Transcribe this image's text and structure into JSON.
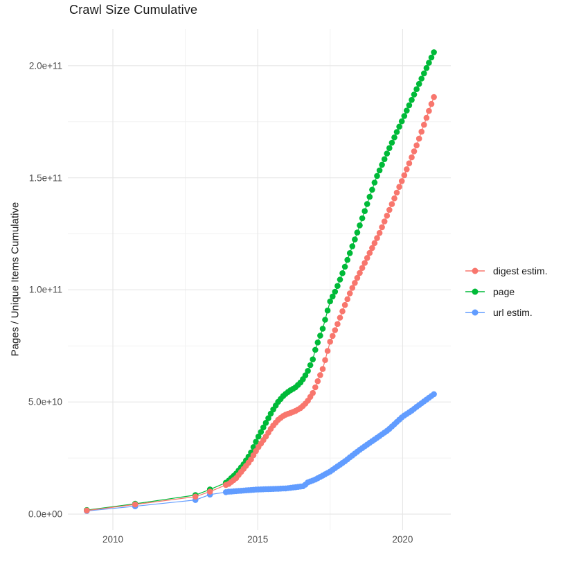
{
  "title": "Crawl Size Cumulative",
  "y_axis": {
    "label": "Pages / Unique Items Cumulative",
    "tick_labels": [
      "0.0e+00",
      "5.0e+10",
      "1.0e+11",
      "1.5e+11",
      "2.0e+11"
    ],
    "tick_values": [
      0,
      50000000000.0,
      100000000000.0,
      150000000000.0,
      200000000000.0
    ]
  },
  "x_axis": {
    "tick_labels": [
      "2010",
      "2015",
      "2020"
    ],
    "tick_values": [
      2010,
      2015,
      2020
    ]
  },
  "legend": {
    "items": [
      {
        "label": "digest estim.",
        "color": "#F8766D"
      },
      {
        "label": "page",
        "color": "#00BA38"
      },
      {
        "label": "url estim.",
        "color": "#619CFF"
      }
    ]
  },
  "colors": {
    "grid_major": "#e7e7e7",
    "grid_minor": "#f2f2f2",
    "title_text": "#1a1a1a",
    "tick_text": "#4d4d4d",
    "background": "#ffffff"
  },
  "chart_data": {
    "type": "scatter",
    "title": "Crawl Size Cumulative",
    "xlabel": "",
    "ylabel": "Pages / Unique Items Cumulative",
    "xlim": [
      2008.45,
      2021.7
    ],
    "ylim": [
      0,
      216000000000.0
    ],
    "x_major_ticks": [
      2010,
      2015,
      2020
    ],
    "x_minor_ticks": [
      2012.5,
      2017.5
    ],
    "y_major_ticks": [
      0,
      50000000000.0,
      100000000000.0,
      150000000000.0,
      200000000000.0
    ],
    "y_minor_ticks": [
      25000000000.0,
      75000000000.0,
      125000000000.0,
      175000000000.0
    ],
    "grid": true,
    "legend_position": "right",
    "marker_style": "point-with-line",
    "dense_from_year": 2014.0,
    "dense_to_year": 2021.08,
    "dense_step_years": 0.0853,
    "draw_order": [
      "url estim.",
      "page",
      "digest estim."
    ],
    "series": [
      {
        "name": "digest estim.",
        "color": "#F8766D",
        "waypoints": [
          [
            2009.1,
            1600000000.0
          ],
          [
            2010.77,
            4300000000.0
          ],
          [
            2012.85,
            7800000000.0
          ],
          [
            2013.35,
            10000000000.0
          ],
          [
            2013.9,
            13000000000.0
          ],
          [
            2014.0,
            13500000000.0
          ],
          [
            2014.25,
            16000000000.0
          ],
          [
            2014.5,
            20000000000.0
          ],
          [
            2014.75,
            24000000000.0
          ],
          [
            2015.0,
            29500000000.0
          ],
          [
            2015.25,
            34000000000.0
          ],
          [
            2015.5,
            39000000000.0
          ],
          [
            2015.7,
            42000000000.0
          ],
          [
            2015.9,
            44000000000.0
          ],
          [
            2016.1,
            45000000000.0
          ],
          [
            2016.3,
            46000000000.0
          ],
          [
            2016.5,
            47500000000.0
          ],
          [
            2016.7,
            50000000000.0
          ],
          [
            2016.9,
            54000000000.0
          ],
          [
            2017.0,
            57000000000.0
          ],
          [
            2017.25,
            65000000000.0
          ],
          [
            2017.5,
            77000000000.0
          ],
          [
            2017.7,
            83000000000.0
          ],
          [
            2018.0,
            93000000000.0
          ],
          [
            2018.23,
            100000000000.0
          ],
          [
            2019.19,
            125000000000.0
          ],
          [
            2020.02,
            150000000000.0
          ],
          [
            2020.5,
            165000000000.0
          ],
          [
            2021.08,
            186000000000.0
          ]
        ]
      },
      {
        "name": "page",
        "color": "#00BA38",
        "waypoints": [
          [
            2009.1,
            1800000000.0
          ],
          [
            2010.77,
            4600000000.0
          ],
          [
            2012.85,
            8500000000.0
          ],
          [
            2013.35,
            11000000000.0
          ],
          [
            2013.9,
            14000000000.0
          ],
          [
            2014.0,
            15000000000.0
          ],
          [
            2014.25,
            18000000000.0
          ],
          [
            2014.5,
            22000000000.0
          ],
          [
            2014.75,
            27000000000.0
          ],
          [
            2015.0,
            34000000000.0
          ],
          [
            2015.25,
            40000000000.0
          ],
          [
            2015.5,
            46000000000.0
          ],
          [
            2015.7,
            50000000000.0
          ],
          [
            2015.9,
            53000000000.0
          ],
          [
            2016.1,
            55000000000.0
          ],
          [
            2016.3,
            56500000000.0
          ],
          [
            2016.5,
            59000000000.0
          ],
          [
            2016.7,
            63000000000.0
          ],
          [
            2016.9,
            69000000000.0
          ],
          [
            2017.0,
            74000000000.0
          ],
          [
            2017.25,
            83000000000.0
          ],
          [
            2017.5,
            95000000000.0
          ],
          [
            2017.7,
            100000000000.0
          ],
          [
            2018.0,
            110000000000.0
          ],
          [
            2018.42,
            125000000000.0
          ],
          [
            2019.09,
            150000000000.0
          ],
          [
            2019.5,
            162000000000.0
          ],
          [
            2020.0,
            176000000000.0
          ],
          [
            2020.5,
            190000000000.0
          ],
          [
            2021.08,
            206000000000.0
          ]
        ]
      },
      {
        "name": "url estim.",
        "color": "#619CFF",
        "waypoints": [
          [
            2009.1,
            1400000000.0
          ],
          [
            2010.77,
            3500000000.0
          ],
          [
            2012.85,
            6300000000.0
          ],
          [
            2013.35,
            8700000000.0
          ],
          [
            2013.9,
            9800000000.0
          ],
          [
            2014.0,
            10000000000.0
          ],
          [
            2014.5,
            10500000000.0
          ],
          [
            2015.0,
            11000000000.0
          ],
          [
            2015.5,
            11200000000.0
          ],
          [
            2016.0,
            11500000000.0
          ],
          [
            2016.3,
            12000000000.0
          ],
          [
            2016.6,
            12500000000.0
          ],
          [
            2016.7,
            14000000000.0
          ],
          [
            2017.0,
            15500000000.0
          ],
          [
            2017.5,
            19000000000.0
          ],
          [
            2018.0,
            23500000000.0
          ],
          [
            2018.5,
            28500000000.0
          ],
          [
            2019.0,
            33000000000.0
          ],
          [
            2019.5,
            37500000000.0
          ],
          [
            2020.0,
            43500000000.0
          ],
          [
            2020.3,
            46000000000.0
          ],
          [
            2020.5,
            48000000000.0
          ],
          [
            2021.08,
            53500000000.0
          ]
        ]
      }
    ]
  }
}
